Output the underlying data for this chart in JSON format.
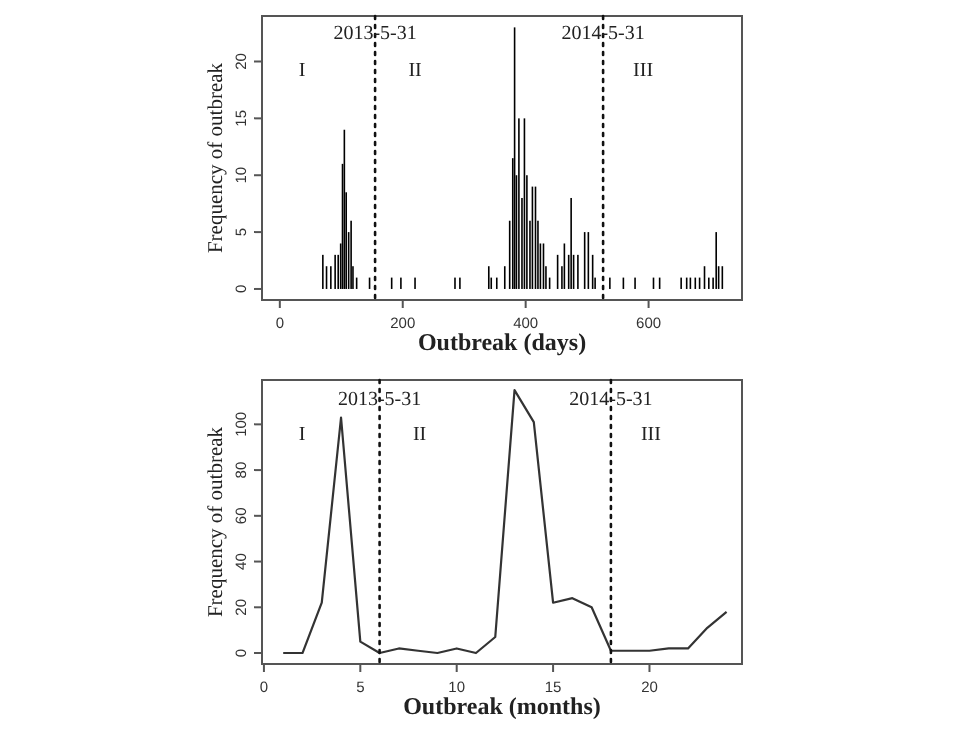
{
  "chart_data": [
    {
      "type": "bar",
      "xlabel": "Outbreak (days)",
      "ylabel": "Frequency of outbreak",
      "color": "#000000",
      "x": [
        70,
        76,
        83,
        90,
        95,
        99,
        102,
        105,
        108,
        112,
        116,
        119,
        125,
        146,
        182,
        197,
        220,
        285,
        293,
        340,
        344,
        353,
        366,
        374,
        379,
        382,
        385,
        389,
        394,
        398,
        402,
        407,
        411,
        416,
        420,
        424,
        429,
        433,
        439,
        452,
        459,
        463,
        470,
        474,
        478,
        485,
        496,
        502,
        509,
        513,
        537,
        559,
        578,
        608,
        618,
        653,
        662,
        668,
        676,
        683,
        691,
        698,
        705,
        710,
        714,
        720
      ],
      "values": [
        3,
        2,
        2,
        3,
        3,
        4,
        11,
        14,
        8.5,
        5,
        6,
        2,
        1,
        1,
        1,
        1,
        1,
        1,
        1,
        2,
        1,
        1,
        2,
        6,
        11.5,
        23,
        10,
        15,
        8,
        15,
        10,
        6,
        9,
        9,
        6,
        4,
        4,
        2,
        1,
        3,
        2,
        4,
        3,
        8,
        3,
        3,
        5,
        5,
        3,
        1,
        1,
        1,
        1,
        1,
        1,
        1,
        1,
        1,
        1,
        1,
        2,
        1,
        1,
        5,
        2,
        2
      ],
      "xlim": [
        -29,
        752
      ],
      "ylim": [
        -0.97,
        24
      ],
      "xticks": [
        0,
        200,
        400,
        600
      ],
      "yticks": [
        0,
        5,
        10,
        15,
        20
      ],
      "ref_lines": [
        {
          "axis": "x",
          "value": 155,
          "line_style": "dotted"
        },
        {
          "axis": "x",
          "value": 526,
          "line_style": "dotted"
        }
      ],
      "annotations": [
        "I",
        "II",
        "III",
        {
          "text": "2013-5-31",
          "x": 155,
          "y": 22.7
        },
        {
          "text": "2014-5-31",
          "x": 526,
          "y": 22.7
        }
      ]
    },
    {
      "type": "line",
      "xlabel": "Outbreak (months)",
      "ylabel": "Frequency of outbreak",
      "color": "#333333",
      "x": [
        1,
        2,
        3,
        4,
        5,
        6,
        7,
        8,
        9,
        10,
        11,
        12,
        13,
        14,
        15,
        16,
        17,
        18,
        19,
        20,
        21,
        22,
        23,
        24
      ],
      "values": [
        0,
        0,
        22,
        103,
        5,
        0,
        2,
        1,
        0,
        2,
        0,
        7,
        115,
        101,
        22,
        24,
        20,
        1,
        1,
        1,
        2,
        2,
        11,
        18
      ],
      "xlim": [
        -0.1,
        24.8
      ],
      "ylim": [
        -4.8,
        119.4
      ],
      "xticks": [
        0,
        5,
        10,
        15,
        20
      ],
      "yticks": [
        0,
        20,
        40,
        60,
        80,
        100
      ],
      "ref_lines": [
        {
          "axis": "x",
          "value": 6,
          "line_style": "dotted"
        },
        {
          "axis": "x",
          "value": 18,
          "line_style": "dotted"
        }
      ],
      "annotations": [
        "I",
        "II",
        "III",
        {
          "text": "2013-5-31",
          "x": 6,
          "y": 112
        },
        {
          "text": "2014-5-31",
          "x": 18,
          "y": 112
        }
      ]
    }
  ]
}
